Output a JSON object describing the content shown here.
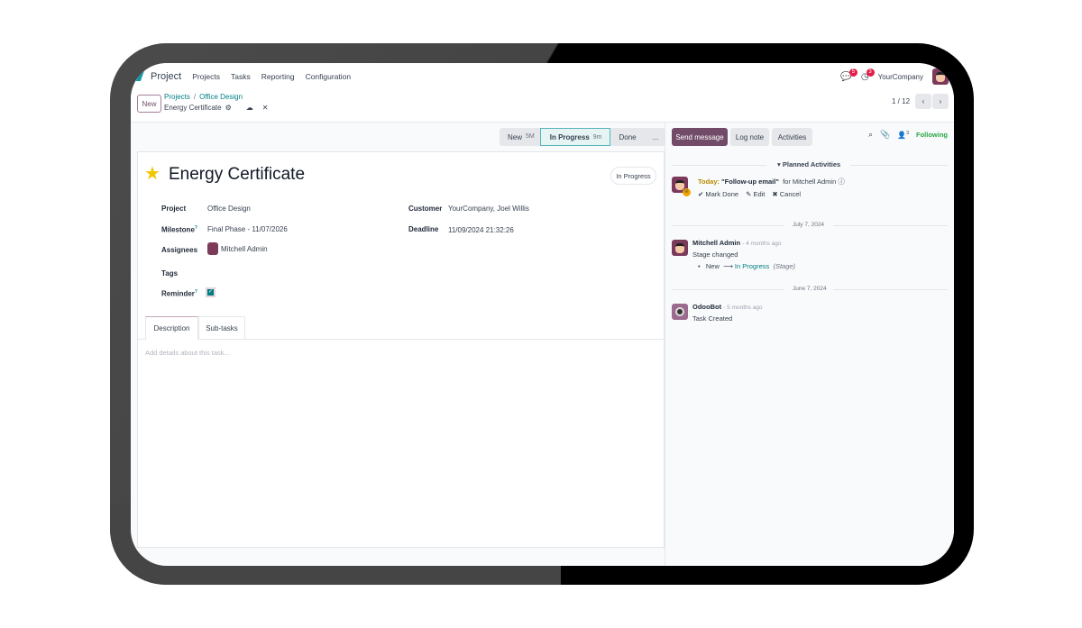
{
  "navbar": {
    "app": "Project",
    "menu": [
      "Projects",
      "Tasks",
      "Reporting",
      "Configuration"
    ],
    "messages_count": "5",
    "activities_count": "3",
    "company": "YourCompany"
  },
  "control": {
    "new_label": "New",
    "breadcrumb": [
      "Projects",
      "Office Design"
    ],
    "record": "Energy Certificate",
    "pager": "1 / 12"
  },
  "statusbar": {
    "stages": [
      {
        "name": "New",
        "time": "5M"
      },
      {
        "name": "In Progress",
        "time": "9m"
      },
      {
        "name": "Done",
        "time": ""
      }
    ],
    "more": "...",
    "current": "In Progress"
  },
  "form": {
    "title": "Energy Certificate",
    "starred": true,
    "state_badge": "In Progress",
    "fields": {
      "project_label": "Project",
      "project": "Office Design",
      "milestone_label": "Milestone",
      "milestone": "Final Phase - 11/07/2026",
      "assignees_label": "Assignees",
      "assignee": "Mitchell Admin",
      "tags_label": "Tags",
      "reminder_label": "Reminder",
      "reminder": true,
      "customer_label": "Customer",
      "customer": "YourCompany, Joel Willis",
      "deadline_label": "Deadline",
      "deadline": "11/09/2024 21:32:26"
    },
    "help_mark": "?",
    "tabs": [
      "Description",
      "Sub-tasks"
    ],
    "active_tab": "Description",
    "description_placeholder": "Add details about this task..."
  },
  "chatter": {
    "send_message": "Send message",
    "log_note": "Log note",
    "activities": "Activities",
    "followers_count": "3",
    "following": "Following",
    "planned_title": "Planned Activities",
    "activity": {
      "when": "Today:",
      "name": "\"Follow-up email\"",
      "for": "for Mitchell Admin",
      "mark_done": "Mark Done",
      "edit": "Edit",
      "cancel": "Cancel"
    },
    "messages": [
      {
        "date": "July 7, 2024",
        "author": "Mitchell Admin",
        "ago": "- 4 months ago",
        "body": "Stage changed",
        "from": "New",
        "to": "In Progress",
        "field": "(Stage)"
      },
      {
        "date": "June 7, 2024",
        "author": "OdooBot",
        "ago": "- 5 months ago",
        "body": "Task Created"
      }
    ]
  },
  "colors": {
    "brand": "#714b67",
    "teal": "#017e84",
    "following": "#28a745",
    "today": "#b58a00"
  }
}
